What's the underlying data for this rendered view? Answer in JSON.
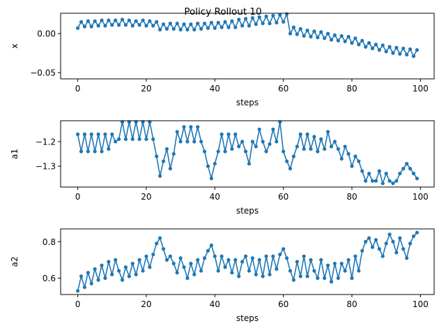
{
  "chart_data": {
    "type": "line",
    "title": "Policy Rollout 10",
    "color": "#1f77b4",
    "subplots": [
      {
        "ylabel": "x",
        "xlabel": "steps",
        "xlim": [
          -5,
          104
        ],
        "ylim": [
          -0.058,
          0.026
        ],
        "xticks": [
          0,
          20,
          40,
          60,
          80,
          100
        ],
        "yticks": [
          0.0,
          -0.05
        ],
        "ytick_labels": [
          "0.00",
          "−0.05"
        ],
        "x": [
          0,
          1,
          2,
          3,
          4,
          5,
          6,
          7,
          8,
          9,
          10,
          11,
          12,
          13,
          14,
          15,
          16,
          17,
          18,
          19,
          20,
          21,
          22,
          23,
          24,
          25,
          26,
          27,
          28,
          29,
          30,
          31,
          32,
          33,
          34,
          35,
          36,
          37,
          38,
          39,
          40,
          41,
          42,
          43,
          44,
          45,
          46,
          47,
          48,
          49,
          50,
          51,
          52,
          53,
          54,
          55,
          56,
          57,
          58,
          59,
          60,
          61,
          62,
          63,
          64,
          65,
          66,
          67,
          68,
          69,
          70,
          71,
          72,
          73,
          74,
          75,
          76,
          77,
          78,
          79,
          80,
          81,
          82,
          83,
          84,
          85,
          86,
          87,
          88,
          89,
          90,
          91,
          92,
          93,
          94,
          95,
          96,
          97,
          98,
          99
        ],
        "values": [
          0.007,
          0.015,
          0.009,
          0.016,
          0.009,
          0.016,
          0.01,
          0.017,
          0.01,
          0.017,
          0.011,
          0.017,
          0.011,
          0.018,
          0.011,
          0.017,
          0.01,
          0.016,
          0.011,
          0.017,
          0.01,
          0.016,
          0.01,
          0.015,
          0.005,
          0.012,
          0.006,
          0.013,
          0.006,
          0.013,
          0.005,
          0.012,
          0.005,
          0.012,
          0.005,
          0.013,
          0.006,
          0.013,
          0.007,
          0.014,
          0.007,
          0.014,
          0.008,
          0.015,
          0.008,
          0.016,
          0.008,
          0.018,
          0.01,
          0.019,
          0.01,
          0.02,
          0.012,
          0.021,
          0.013,
          0.022,
          0.013,
          0.023,
          0.014,
          0.024,
          0.015,
          0.025,
          0.0,
          0.008,
          -0.001,
          0.006,
          -0.003,
          0.004,
          -0.004,
          0.003,
          -0.005,
          0.002,
          -0.006,
          0.0,
          -0.008,
          -0.002,
          -0.009,
          -0.003,
          -0.01,
          -0.004,
          -0.012,
          -0.006,
          -0.014,
          -0.009,
          -0.017,
          -0.012,
          -0.019,
          -0.014,
          -0.021,
          -0.015,
          -0.023,
          -0.017,
          -0.025,
          -0.018,
          -0.026,
          -0.019,
          -0.027,
          -0.02,
          -0.029,
          -0.021
        ]
      },
      {
        "ylabel": "a1",
        "xlabel": "steps",
        "xlim": [
          -5,
          104
        ],
        "ylim": [
          -1.385,
          -1.115
        ],
        "xticks": [
          0,
          20,
          40,
          60,
          80,
          100
        ],
        "yticks": [
          -1.2,
          -1.3
        ],
        "ytick_labels": [
          "−1.2",
          "−1.3"
        ],
        "x": [
          0,
          1,
          2,
          3,
          4,
          5,
          6,
          7,
          8,
          9,
          10,
          11,
          12,
          13,
          14,
          15,
          16,
          17,
          18,
          19,
          20,
          21,
          22,
          23,
          24,
          25,
          26,
          27,
          28,
          29,
          30,
          31,
          32,
          33,
          34,
          35,
          36,
          37,
          38,
          39,
          40,
          41,
          42,
          43,
          44,
          45,
          46,
          47,
          48,
          49,
          50,
          51,
          52,
          53,
          54,
          55,
          56,
          57,
          58,
          59,
          60,
          61,
          62,
          63,
          64,
          65,
          66,
          67,
          68,
          69,
          70,
          71,
          72,
          73,
          74,
          75,
          76,
          77,
          78,
          79,
          80,
          81,
          82,
          83,
          84,
          85,
          86,
          87,
          88,
          89,
          90,
          91,
          92,
          93,
          94,
          95,
          96,
          97,
          98,
          99
        ],
        "values": [
          -1.17,
          -1.24,
          -1.17,
          -1.24,
          -1.17,
          -1.24,
          -1.17,
          -1.24,
          -1.17,
          -1.23,
          -1.17,
          -1.2,
          -1.19,
          -1.12,
          -1.19,
          -1.12,
          -1.19,
          -1.12,
          -1.19,
          -1.12,
          -1.19,
          -1.12,
          -1.19,
          -1.26,
          -1.34,
          -1.28,
          -1.23,
          -1.31,
          -1.25,
          -1.16,
          -1.2,
          -1.14,
          -1.2,
          -1.14,
          -1.2,
          -1.14,
          -1.2,
          -1.24,
          -1.3,
          -1.35,
          -1.29,
          -1.24,
          -1.17,
          -1.24,
          -1.17,
          -1.23,
          -1.17,
          -1.22,
          -1.2,
          -1.24,
          -1.29,
          -1.2,
          -1.22,
          -1.15,
          -1.2,
          -1.24,
          -1.21,
          -1.15,
          -1.2,
          -1.12,
          -1.24,
          -1.28,
          -1.31,
          -1.26,
          -1.22,
          -1.17,
          -1.23,
          -1.17,
          -1.23,
          -1.18,
          -1.24,
          -1.19,
          -1.23,
          -1.16,
          -1.22,
          -1.2,
          -1.23,
          -1.27,
          -1.22,
          -1.25,
          -1.3,
          -1.26,
          -1.28,
          -1.32,
          -1.36,
          -1.33,
          -1.36,
          -1.36,
          -1.32,
          -1.37,
          -1.33,
          -1.36,
          -1.37,
          -1.36,
          -1.33,
          -1.31,
          -1.29,
          -1.31,
          -1.33,
          -1.35
        ]
      },
      {
        "ylabel": "a2",
        "xlabel": "steps",
        "xlim": [
          -5,
          104
        ],
        "ylim": [
          0.51,
          0.87
        ],
        "xticks": [
          0,
          20,
          40,
          60,
          80,
          100
        ],
        "yticks": [
          0.6,
          0.8
        ],
        "ytick_labels": [
          "0.6",
          "0.8"
        ],
        "x": [
          0,
          1,
          2,
          3,
          4,
          5,
          6,
          7,
          8,
          9,
          10,
          11,
          12,
          13,
          14,
          15,
          16,
          17,
          18,
          19,
          20,
          21,
          22,
          23,
          24,
          25,
          26,
          27,
          28,
          29,
          30,
          31,
          32,
          33,
          34,
          35,
          36,
          37,
          38,
          39,
          40,
          41,
          42,
          43,
          44,
          45,
          46,
          47,
          48,
          49,
          50,
          51,
          52,
          53,
          54,
          55,
          56,
          57,
          58,
          59,
          60,
          61,
          62,
          63,
          64,
          65,
          66,
          67,
          68,
          69,
          70,
          71,
          72,
          73,
          74,
          75,
          76,
          77,
          78,
          79,
          80,
          81,
          82,
          83,
          84,
          85,
          86,
          87,
          88,
          89,
          90,
          91,
          92,
          93,
          94,
          95,
          96,
          97,
          98,
          99
        ],
        "values": [
          0.53,
          0.61,
          0.55,
          0.63,
          0.57,
          0.65,
          0.59,
          0.67,
          0.6,
          0.69,
          0.62,
          0.7,
          0.64,
          0.59,
          0.66,
          0.61,
          0.68,
          0.62,
          0.7,
          0.64,
          0.72,
          0.66,
          0.73,
          0.79,
          0.82,
          0.76,
          0.7,
          0.72,
          0.68,
          0.63,
          0.71,
          0.66,
          0.6,
          0.68,
          0.62,
          0.7,
          0.64,
          0.71,
          0.75,
          0.78,
          0.72,
          0.64,
          0.72,
          0.66,
          0.7,
          0.63,
          0.7,
          0.61,
          0.69,
          0.72,
          0.64,
          0.71,
          0.62,
          0.7,
          0.61,
          0.72,
          0.62,
          0.72,
          0.65,
          0.73,
          0.76,
          0.71,
          0.64,
          0.59,
          0.69,
          0.61,
          0.72,
          0.61,
          0.7,
          0.64,
          0.6,
          0.7,
          0.6,
          0.67,
          0.58,
          0.68,
          0.6,
          0.68,
          0.64,
          0.7,
          0.6,
          0.72,
          0.64,
          0.75,
          0.8,
          0.82,
          0.77,
          0.81,
          0.76,
          0.72,
          0.79,
          0.84,
          0.8,
          0.74,
          0.82,
          0.76,
          0.71,
          0.79,
          0.83,
          0.85
        ]
      }
    ]
  }
}
